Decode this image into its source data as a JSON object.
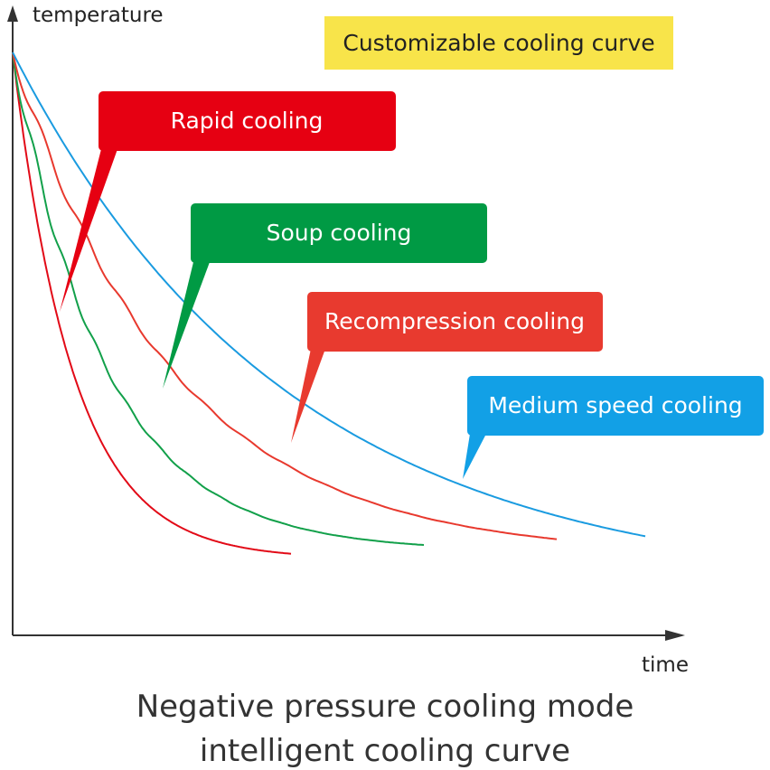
{
  "chart_data": {
    "type": "line",
    "xlabel": "time",
    "ylabel": "temperature",
    "title_lines": [
      "Negative pressure cooling mode",
      "intelligent cooling curve"
    ],
    "banner": "Customizable cooling curve",
    "grid": false,
    "series": [
      {
        "name": "Rapid cooling",
        "color": "#e20a17",
        "shape": "smooth",
        "x_end": 0.44,
        "decay": 4.6,
        "y_end": 0.86
      },
      {
        "name": "Soup cooling",
        "color": "#12a04a",
        "shape": "stepped",
        "x_end": 0.65,
        "decay": 4.4,
        "y_end": 0.845
      },
      {
        "name": "Recompression cooling",
        "color": "#e8392e",
        "shape": "stepped",
        "x_end": 0.86,
        "decay": 3.4,
        "y_end": 0.835
      },
      {
        "name": "Medium speed cooling",
        "color": "#1a9be0",
        "shape": "smooth",
        "x_end": 1.0,
        "decay": 2.3,
        "y_end": 0.83
      }
    ]
  },
  "callouts": {
    "rapid": {
      "label": "Rapid cooling",
      "color": "#e60012"
    },
    "soup": {
      "label": "Soup cooling",
      "color": "#009a44"
    },
    "recompression": {
      "label": "Recompression cooling",
      "color": "#e83a2f"
    },
    "medium": {
      "label": "Medium speed cooling",
      "color": "#12a0e6"
    }
  },
  "banner_color": "#f8e44a"
}
